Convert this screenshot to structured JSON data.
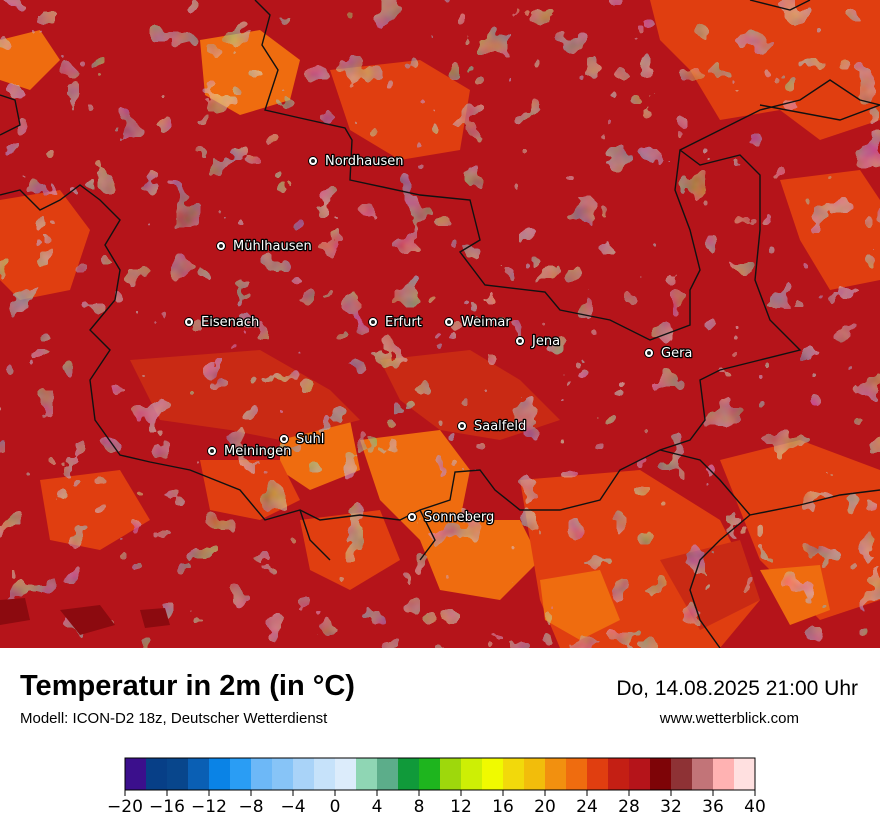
{
  "map": {
    "colors": {
      "deep_red": "#a50f15",
      "dark_red": "#b5141a",
      "red": "#c92a14",
      "red_orange": "#e03e10",
      "orange": "#ef6c0f",
      "light_orange": "#f4841a",
      "maroon": "#8c0a0f",
      "border": "#111111"
    },
    "cities": [
      {
        "name": "Nordhausen"
      },
      {
        "name": "Mühlhausen"
      },
      {
        "name": "Eisenach"
      },
      {
        "name": "Erfurt"
      },
      {
        "name": "Weimar"
      },
      {
        "name": "Jena"
      },
      {
        "name": "Gera"
      },
      {
        "name": "Suhl"
      },
      {
        "name": "Meiningen"
      },
      {
        "name": "Saalfeld"
      },
      {
        "name": "Sonneberg"
      }
    ]
  },
  "header": {
    "title": "Temperatur in 2m (in °C)",
    "model": "Modell: ICON-D2 18z, Deutscher Wetterdienst",
    "datetime": "Do, 14.08.2025 21:00 Uhr",
    "source": "www.wetterblick.com"
  },
  "legend": {
    "min": -20,
    "max": 40,
    "step": 2,
    "colors": [
      "#3b0f8c",
      "#073f87",
      "#08468c",
      "#0a5fb4",
      "#0a83e6",
      "#2a9df4",
      "#6db8f7",
      "#87c4f7",
      "#a9d3f8",
      "#c6e2fa",
      "#dcecfb",
      "#8fd6b4",
      "#5cad8a",
      "#109a3a",
      "#1eb51e",
      "#9ed80c",
      "#cdef05",
      "#f0fa00",
      "#f2d90b",
      "#f2bd0b",
      "#f2900f",
      "#ef6c0f",
      "#e03e10",
      "#c41f14",
      "#b5141a",
      "#7e0407",
      "#8e3235",
      "#c27478",
      "#ffb2b2",
      "#ffe0e0"
    ],
    "tick_labels": [
      "−20",
      "−16",
      "−12",
      "−8",
      "−4",
      "0",
      "4",
      "8",
      "12",
      "16",
      "20",
      "24",
      "28",
      "32",
      "36",
      "40"
    ]
  }
}
